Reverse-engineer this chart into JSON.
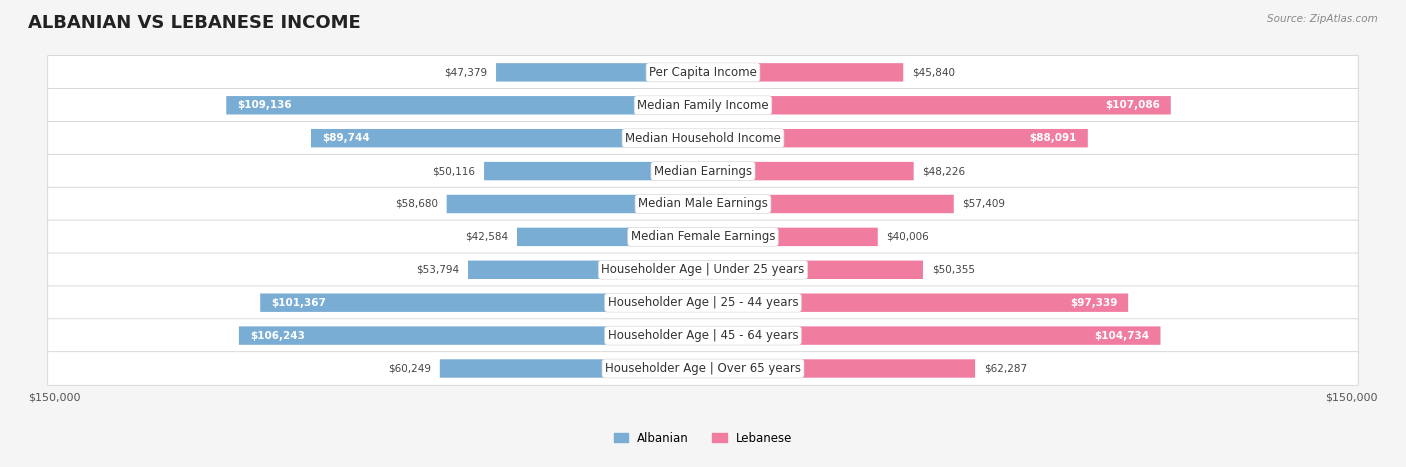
{
  "title": "ALBANIAN VS LEBANESE INCOME",
  "source": "Source: ZipAtlas.com",
  "categories": [
    "Per Capita Income",
    "Median Family Income",
    "Median Household Income",
    "Median Earnings",
    "Median Male Earnings",
    "Median Female Earnings",
    "Householder Age | Under 25 years",
    "Householder Age | 25 - 44 years",
    "Householder Age | 45 - 64 years",
    "Householder Age | Over 65 years"
  ],
  "albanian_values": [
    47379,
    109136,
    89744,
    50116,
    58680,
    42584,
    53794,
    101367,
    106243,
    60249
  ],
  "lebanese_values": [
    45840,
    107086,
    88091,
    48226,
    57409,
    40006,
    50355,
    97339,
    104734,
    62287
  ],
  "albanian_color": "#7aadd4",
  "lebanese_color": "#f07ca0",
  "max_value": 150000,
  "bar_height": 0.55,
  "background_color": "#f5f5f5",
  "label_fontsize": 8.5,
  "title_fontsize": 13,
  "value_fontsize": 7.5,
  "axis_label": "$150,000",
  "legend_albanian": "Albanian",
  "legend_lebanese": "Lebanese",
  "inside_threshold": 65000
}
